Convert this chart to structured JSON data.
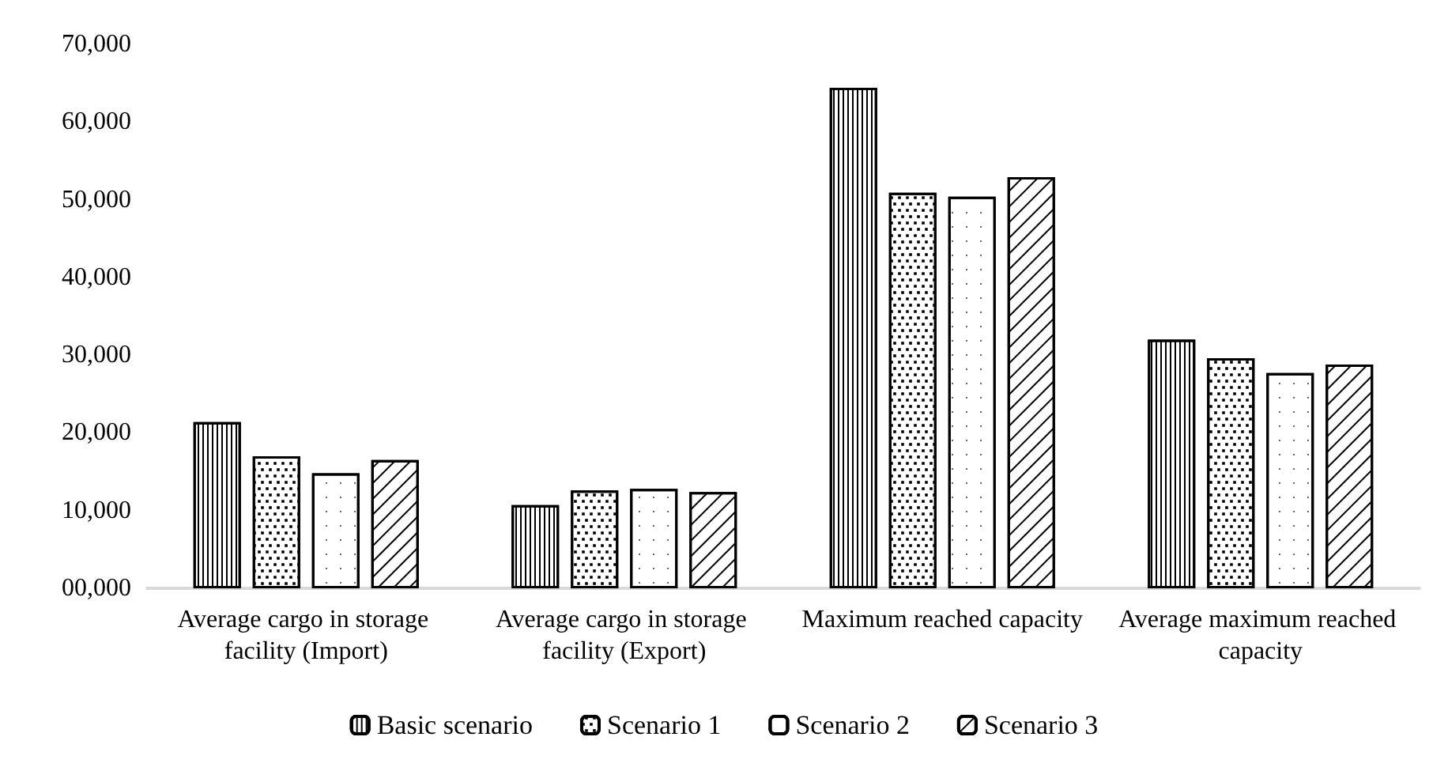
{
  "chart_data": {
    "type": "bar",
    "categories": [
      "Average cargo in storage facility (Import)",
      "Average cargo in storage facility (Export)",
      "Maximum reached capacity",
      "Average maximum reached capacity"
    ],
    "series": [
      {
        "name": "Basic scenario",
        "color": "#000000",
        "values": [
          21400,
          10700,
          64400,
          32000
        ]
      },
      {
        "name": "Scenario 1",
        "color": "#000000",
        "values": [
          17000,
          12600,
          50900,
          29600
        ]
      },
      {
        "name": "Scenario 2",
        "color": "#000000",
        "values": [
          14800,
          12800,
          50400,
          27700
        ]
      },
      {
        "name": "Scenario 3",
        "color": "#000000",
        "values": [
          16500,
          12400,
          52900,
          28800
        ]
      }
    ],
    "ylim": [
      0,
      70000
    ],
    "yticks": [
      {
        "value": 0,
        "label": "00,000"
      },
      {
        "value": 10000,
        "label": "10,000"
      },
      {
        "value": 20000,
        "label": "20,000"
      },
      {
        "value": 30000,
        "label": "30,000"
      },
      {
        "value": 40000,
        "label": "40,000"
      },
      {
        "value": 50000,
        "label": "50,000"
      },
      {
        "value": 60000,
        "label": "60,000"
      },
      {
        "value": 70000,
        "label": "70,000"
      }
    ],
    "grid": false,
    "legend": "bottom"
  }
}
